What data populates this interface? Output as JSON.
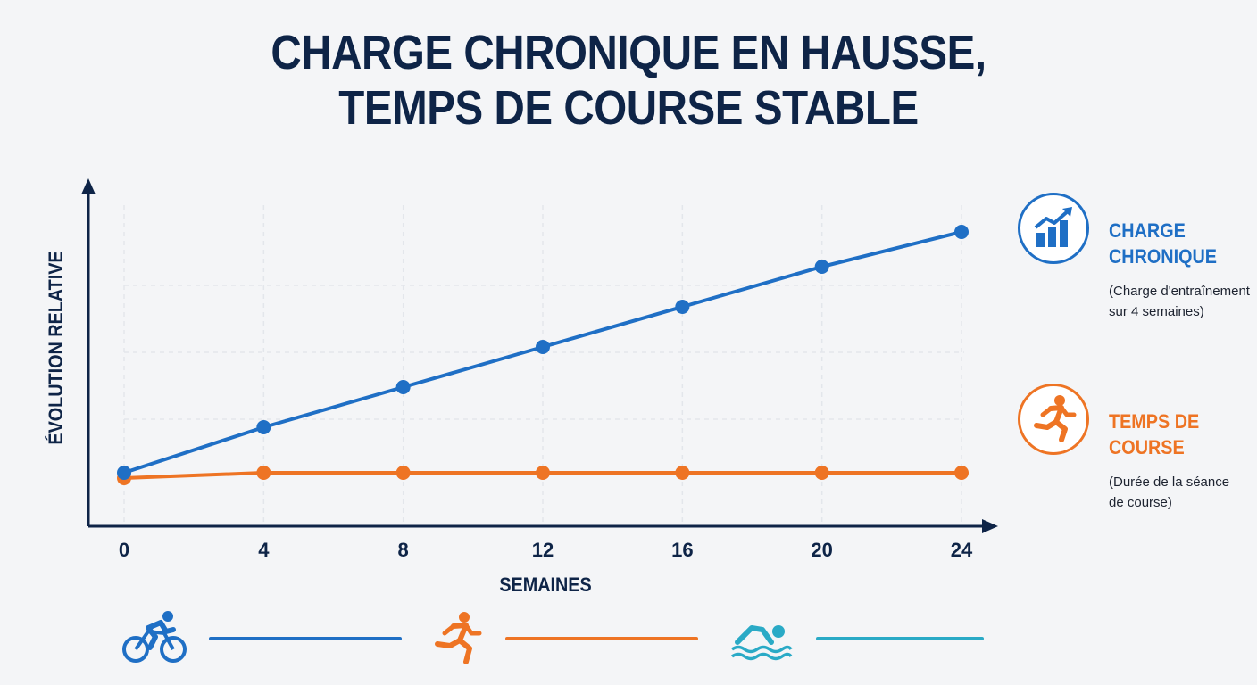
{
  "title": {
    "line1": "CHARGE CHRONIQUE EN HAUSSE,",
    "line2": "TEMPS DE COURSE STABLE"
  },
  "chart_data": {
    "type": "line",
    "xlabel": "SEMAINES",
    "ylabel": "ÉVOLUTION RELATIVE",
    "x": [
      0,
      4,
      8,
      12,
      16,
      20,
      24
    ],
    "xticks": [
      "0",
      "4",
      "8",
      "12",
      "16",
      "20",
      "24"
    ],
    "y_ticks_shown": false,
    "ylim": [
      0.9,
      2.1
    ],
    "grid": true,
    "legend_placement": "right",
    "series": [
      {
        "name": "CHARGE CHRONIQUE",
        "description": "(Charge d'entraînement\nsur 4 semaines)",
        "color": "#1f6fc5",
        "values": [
          1.0,
          1.17,
          1.32,
          1.47,
          1.62,
          1.77,
          1.9
        ]
      },
      {
        "name": "TEMPS DE COURSE",
        "description": "(Durée de la séance\nde course)",
        "color": "#ee7424",
        "values": [
          0.98,
          1.0,
          1.0,
          1.0,
          1.0,
          1.0,
          1.0
        ]
      }
    ]
  },
  "legend": {
    "charge": {
      "name": "CHARGE\nCHRONIQUE",
      "desc": "(Charge d'entraînement\nsur 4 semaines)",
      "icon": "bar-chart-up-icon",
      "color": "#1f6fc5"
    },
    "course": {
      "name": "TEMPS DE\nCOURSE",
      "desc": "(Durée de la séance\nde course)",
      "icon": "runner-icon",
      "color": "#ee7424"
    }
  },
  "footer": {
    "items": [
      {
        "icon": "cyclist-icon",
        "color": "#1f6fc5"
      },
      {
        "icon": "runner-icon",
        "color": "#ee7424"
      },
      {
        "icon": "swimmer-icon",
        "color": "#2aaac6"
      }
    ]
  },
  "colors": {
    "axis": "#0e2447",
    "grid": "#e3e6eb",
    "title": "#0e2447",
    "background": "#f4f5f7"
  }
}
